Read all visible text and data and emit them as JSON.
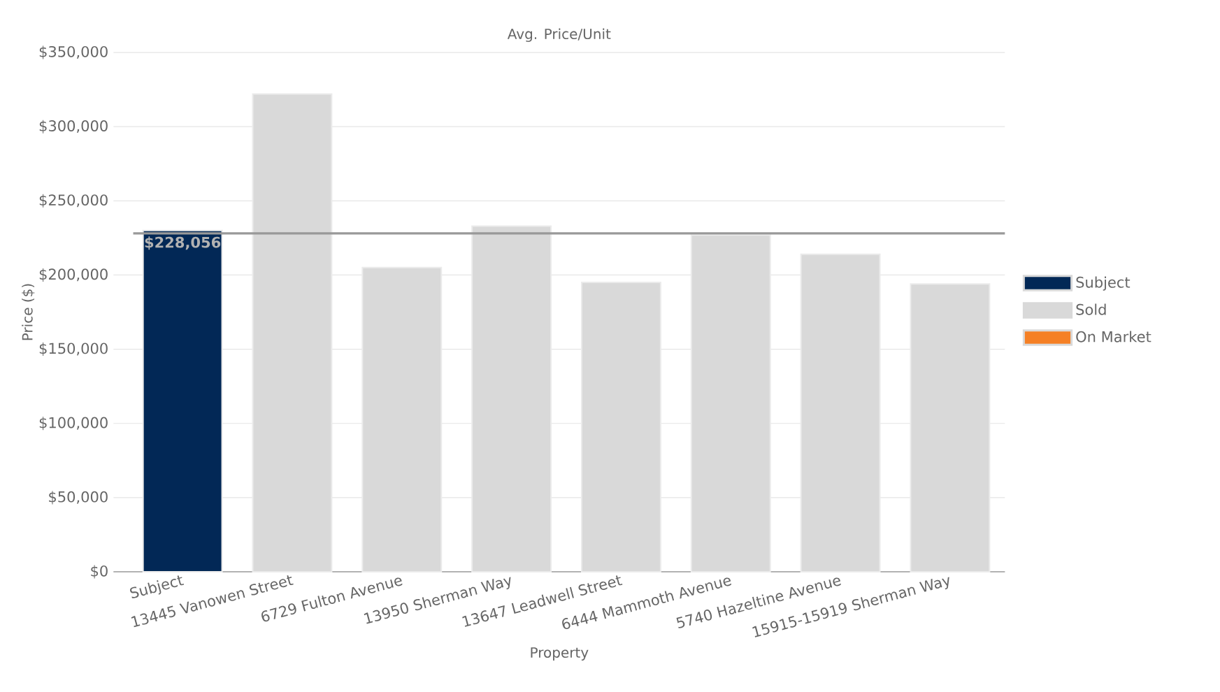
{
  "chart_data": {
    "type": "bar",
    "title": "Avg. Price/Unit",
    "xlabel": "Property",
    "ylabel": "Price ($)",
    "categories": [
      "Subject",
      "13445 Vanowen Street",
      "6729 Fulton Avenue",
      "13950 Sherman Way",
      "13647 Leadwell Street",
      "6444 Mammoth Avenue",
      "5740 Hazeltine Avenue",
      "15915-15919 Sherman Way"
    ],
    "series": [
      {
        "name": "Subject",
        "color": "#022856",
        "values": [
          230000,
          null,
          null,
          null,
          null,
          null,
          null,
          null
        ]
      },
      {
        "name": "Sold",
        "color": "#d9d9d9",
        "values": [
          null,
          322000,
          205000,
          233000,
          195000,
          227000,
          214000,
          194000
        ]
      },
      {
        "name": "On Market",
        "color": "#f58025",
        "values": [
          null,
          null,
          null,
          null,
          null,
          null,
          null,
          null
        ]
      }
    ],
    "ylim": [
      0,
      350000
    ],
    "yticks": [
      {
        "value": 0,
        "label": "$0"
      },
      {
        "value": 50000,
        "label": "$50,000"
      },
      {
        "value": 100000,
        "label": "$100,000"
      },
      {
        "value": 150000,
        "label": "$150,000"
      },
      {
        "value": 200000,
        "label": "$200,000"
      },
      {
        "value": 250000,
        "label": "$250,000"
      },
      {
        "value": 300000,
        "label": "$300,000"
      },
      {
        "value": 350000,
        "label": "$350,000"
      }
    ],
    "ref_lines": [
      {
        "axis": "y",
        "value": 228056,
        "label": "$228,056",
        "color": "#999999"
      }
    ],
    "grid": "y",
    "legend": "right"
  }
}
